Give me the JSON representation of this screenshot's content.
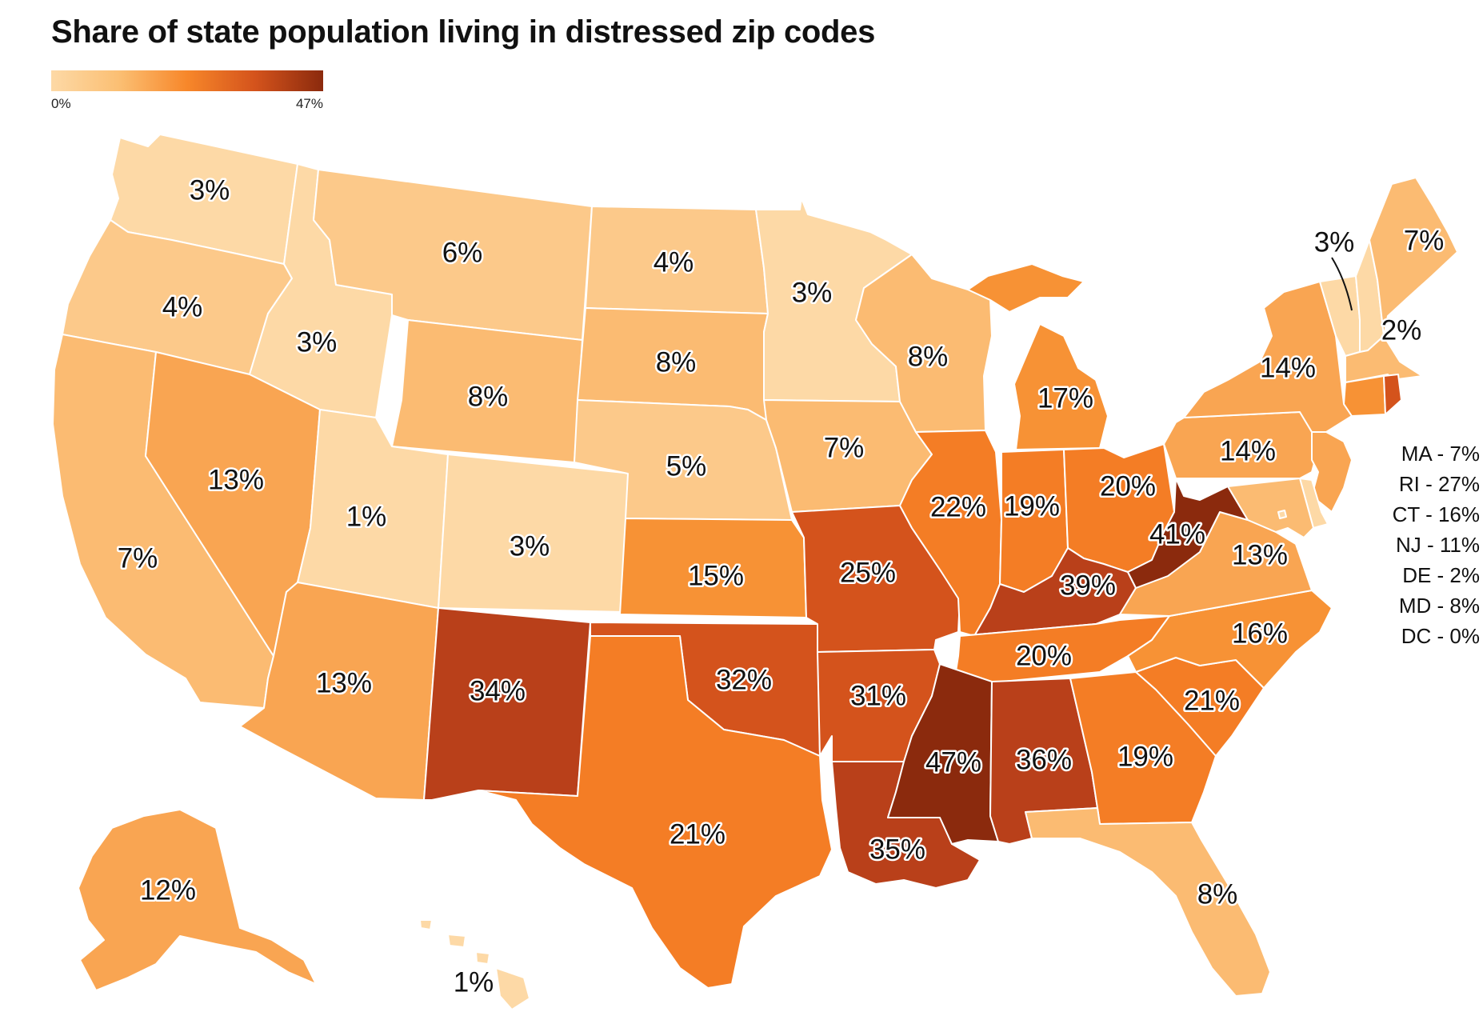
{
  "title": "Share of state population living in distressed zip codes",
  "legend": {
    "min_label": "0%",
    "max_label": "47%",
    "min": 0,
    "max": 47
  },
  "colors": {
    "c1": "#fdd9a6",
    "c2": "#fcc98a",
    "c3": "#fbbb72",
    "c4": "#f9a552",
    "c5": "#f79235",
    "c6": "#f47d25",
    "c7": "#d4531c",
    "c8": "#b9401a",
    "c9": "#8b2a0d"
  },
  "states": [
    {
      "id": "WA",
      "label": "3%",
      "value": 3
    },
    {
      "id": "OR",
      "label": "4%",
      "value": 4
    },
    {
      "id": "CA",
      "label": "7%",
      "value": 7
    },
    {
      "id": "ID",
      "label": "3%",
      "value": 3
    },
    {
      "id": "NV",
      "label": "13%",
      "value": 13
    },
    {
      "id": "MT",
      "label": "6%",
      "value": 6
    },
    {
      "id": "WY",
      "label": "8%",
      "value": 8
    },
    {
      "id": "UT",
      "label": "1%",
      "value": 1
    },
    {
      "id": "AZ",
      "label": "13%",
      "value": 13
    },
    {
      "id": "CO",
      "label": "3%",
      "value": 3
    },
    {
      "id": "NM",
      "label": "34%",
      "value": 34
    },
    {
      "id": "ND",
      "label": "4%",
      "value": 4
    },
    {
      "id": "SD",
      "label": "8%",
      "value": 8
    },
    {
      "id": "NE",
      "label": "5%",
      "value": 5
    },
    {
      "id": "KS",
      "label": "15%",
      "value": 15
    },
    {
      "id": "OK",
      "label": "32%",
      "value": 32
    },
    {
      "id": "TX",
      "label": "21%",
      "value": 21
    },
    {
      "id": "MN",
      "label": "3%",
      "value": 3
    },
    {
      "id": "IA",
      "label": "7%",
      "value": 7
    },
    {
      "id": "MO",
      "label": "25%",
      "value": 25
    },
    {
      "id": "AR",
      "label": "31%",
      "value": 31
    },
    {
      "id": "LA",
      "label": "35%",
      "value": 35
    },
    {
      "id": "WI",
      "label": "8%",
      "value": 8
    },
    {
      "id": "IL",
      "label": "22%",
      "value": 22
    },
    {
      "id": "MI",
      "label": "17%",
      "value": 17
    },
    {
      "id": "IN",
      "label": "19%",
      "value": 19
    },
    {
      "id": "OH",
      "label": "20%",
      "value": 20
    },
    {
      "id": "KY",
      "label": "39%",
      "value": 39
    },
    {
      "id": "TN",
      "label": "20%",
      "value": 20
    },
    {
      "id": "MS",
      "label": "47%",
      "value": 47
    },
    {
      "id": "AL",
      "label": "36%",
      "value": 36
    },
    {
      "id": "GA",
      "label": "19%",
      "value": 19
    },
    {
      "id": "FL",
      "label": "8%",
      "value": 8
    },
    {
      "id": "SC",
      "label": "21%",
      "value": 21
    },
    {
      "id": "NC",
      "label": "16%",
      "value": 16
    },
    {
      "id": "VA",
      "label": "13%",
      "value": 13
    },
    {
      "id": "WV",
      "label": "41%",
      "value": 41
    },
    {
      "id": "PA",
      "label": "14%",
      "value": 14
    },
    {
      "id": "NY",
      "label": "14%",
      "value": 14
    },
    {
      "id": "VT",
      "label": "3%",
      "value": 3
    },
    {
      "id": "NH",
      "label": "2%",
      "value": 2
    },
    {
      "id": "ME",
      "label": "7%",
      "value": 7
    },
    {
      "id": "AK",
      "label": "12%",
      "value": 12
    },
    {
      "id": "HI",
      "label": "1%",
      "value": 1
    }
  ],
  "small_states": [
    {
      "id": "MA",
      "text": "MA - 7%",
      "value": 7
    },
    {
      "id": "RI",
      "text": "RI - 27%",
      "value": 27
    },
    {
      "id": "CT",
      "text": "CT - 16%",
      "value": 16
    },
    {
      "id": "NJ",
      "text": "NJ - 11%",
      "value": 11
    },
    {
      "id": "DE",
      "text": "DE - 2%",
      "value": 2
    },
    {
      "id": "MD",
      "text": "MD - 8%",
      "value": 8
    },
    {
      "id": "DC",
      "text": "DC - 0%",
      "value": 0
    }
  ]
}
